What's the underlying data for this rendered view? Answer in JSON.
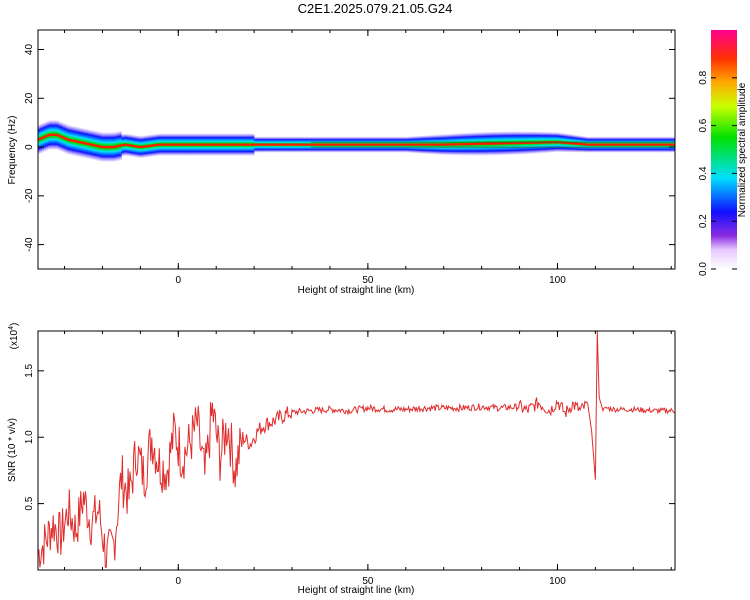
{
  "title": "C2E1.2025.079.21.05.G24",
  "chart_data": [
    {
      "type": "heatmap",
      "xlabel": "Height of straight line (km)",
      "ylabel": "Frequency (Hz)",
      "xlim": [
        -37,
        131
      ],
      "ylim": [
        -50,
        48
      ],
      "xticks": [
        0,
        50,
        100
      ],
      "yticks": [
        40,
        20,
        0,
        -20,
        -40
      ],
      "grid": false,
      "colorbar": {
        "label": "Normalized spectral amplitude",
        "range": [
          0.0,
          1.0
        ],
        "ticks": [
          "0.0",
          "0.2",
          "0.4",
          "0.6",
          "0.8"
        ],
        "colormap": "rainbow (white-violet-blue-cyan-green-yellow-orange-red)"
      },
      "ridge_centre_frequency": [
        {
          "x": -37,
          "y": 3
        },
        {
          "x": -34,
          "y": 5
        },
        {
          "x": -32,
          "y": 5
        },
        {
          "x": -29,
          "y": 3
        },
        {
          "x": -26,
          "y": 2
        },
        {
          "x": -23,
          "y": 1
        },
        {
          "x": -20,
          "y": 0
        },
        {
          "x": -17,
          "y": 0
        },
        {
          "x": -14,
          "y": 1
        },
        {
          "x": -10,
          "y": 0
        },
        {
          "x": -5,
          "y": 1
        },
        {
          "x": 0,
          "y": 1
        },
        {
          "x": 10,
          "y": 1
        },
        {
          "x": 20,
          "y": 1
        },
        {
          "x": 40,
          "y": 1
        },
        {
          "x": 70,
          "y": 1
        },
        {
          "x": 100,
          "y": 2
        },
        {
          "x": 108,
          "y": 1
        },
        {
          "x": 112,
          "y": 1
        },
        {
          "x": 131,
          "y": 1
        }
      ]
    },
    {
      "type": "line",
      "xlabel": "Height of straight line (km)",
      "ylabel": "SNR (10 * v/v)",
      "y_multiplier": "(x10",
      "y_multiplier_exp": "4",
      "y_multiplier_close": ")",
      "xlim": [
        -37,
        131
      ],
      "ylim": [
        0,
        1.8
      ],
      "xticks": [
        0,
        50,
        100
      ],
      "yticks": [
        0.5,
        1.0,
        1.5
      ],
      "yticklabels": [
        "0.5",
        "1.0",
        "1.5"
      ],
      "grid": false,
      "line_color": "#e02c2c",
      "series": [
        {
          "x": [
            -37,
            -35,
            -33,
            -31,
            -29,
            -27,
            -25,
            -23,
            -21,
            -19,
            -17,
            -15,
            -13,
            -11,
            -9,
            -7,
            -5,
            -3,
            -1,
            1,
            3,
            5,
            7,
            9,
            11,
            13,
            15,
            17,
            19,
            21,
            23,
            25,
            27,
            29,
            31,
            35,
            40,
            45,
            50,
            55,
            60,
            65,
            70,
            75,
            80,
            85,
            90,
            92,
            95,
            98,
            100,
            102,
            104,
            106,
            108,
            109,
            110,
            110.5,
            111,
            112,
            113,
            115,
            120,
            125,
            131
          ],
          "y": [
            0.12,
            0.22,
            0.35,
            0.25,
            0.45,
            0.3,
            0.55,
            0.35,
            0.45,
            0.1,
            0.2,
            0.7,
            0.55,
            0.9,
            0.7,
            1.0,
            0.8,
            0.75,
            1.05,
            0.85,
            0.95,
            1.1,
            0.7,
            1.2,
            0.85,
            1.1,
            0.75,
            1.0,
            0.95,
            1.05,
            1.1,
            1.12,
            1.15,
            1.18,
            1.19,
            1.2,
            1.21,
            1.2,
            1.22,
            1.21,
            1.21,
            1.22,
            1.22,
            1.22,
            1.23,
            1.22,
            1.23,
            1.2,
            1.26,
            1.2,
            1.27,
            1.18,
            1.25,
            1.2,
            1.25,
            1.05,
            0.68,
            1.8,
            1.3,
            1.2,
            1.22,
            1.21,
            1.21,
            1.2,
            1.2
          ]
        }
      ]
    }
  ]
}
